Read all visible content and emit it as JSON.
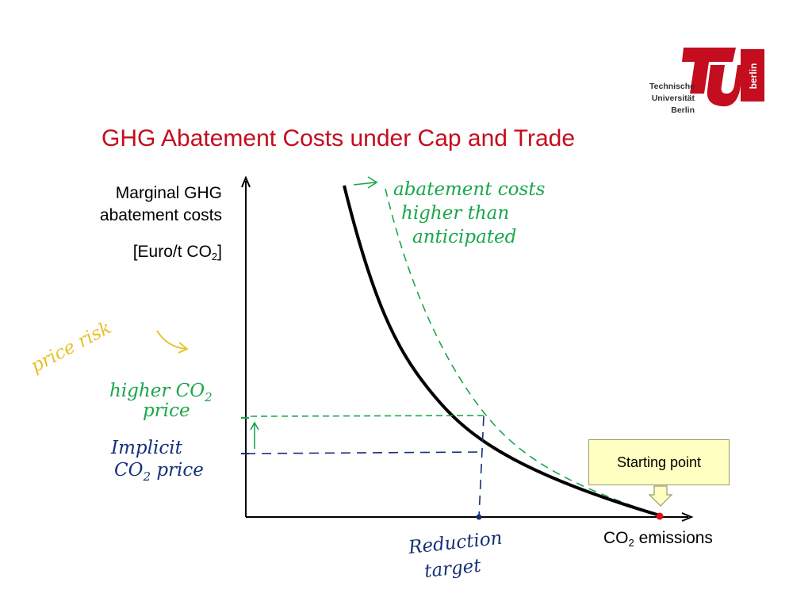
{
  "logo": {
    "line1": "Technische",
    "line2": "Universität",
    "line3": "Berlin",
    "side_text": "berlin",
    "color": "#c40d1e"
  },
  "title": "GHG Abatement Costs under Cap and Trade",
  "axes": {
    "y_label_line1": "Marginal GHG",
    "y_label_line2": "abatement costs",
    "y_unit_prefix": "[Euro/t CO",
    "y_unit_sub": "2",
    "y_unit_suffix": "]",
    "x_label_prefix": "CO",
    "x_label_sub": "2",
    "x_label_suffix": " emissions"
  },
  "callout": {
    "label": "Starting point",
    "fill": "#ffffc2"
  },
  "handwriting": {
    "green_line1": "abatement costs",
    "green_line2": "higher than",
    "green_line3": "anticipated",
    "green_price_line1": "higher CO",
    "green_price_sub": "2",
    "green_price_line2": "price",
    "blue_line1": "Implicit",
    "blue_line2_prefix": "CO",
    "blue_line2_sub": "2",
    "blue_line2_suffix": " price",
    "yellow": "price risk",
    "reduction_line1": "Reduction",
    "reduction_line2": "target"
  },
  "colors": {
    "curve": "#000000",
    "green": "#1aa64a",
    "blue": "#15307a",
    "yellow": "#e8c12a",
    "start_point": "#dd1111"
  }
}
